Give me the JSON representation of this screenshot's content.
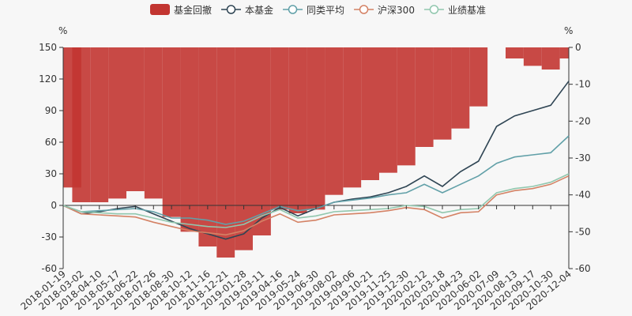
{
  "chart_data": {
    "type": "line",
    "unit_left": "%",
    "unit_right": "%",
    "left_axis": {
      "min": -60,
      "max": 150,
      "ticks": [
        150,
        120,
        90,
        60,
        30,
        0,
        -30,
        -60
      ]
    },
    "right_axis": {
      "min": -60,
      "max": 0,
      "ticks": [
        0,
        -10,
        -20,
        -30,
        -40,
        -50,
        -60
      ]
    },
    "x_labels": [
      "2018-01-19",
      "2018-03-02",
      "2018-04-10",
      "2018-05-17",
      "2018-06-22",
      "2018-07-26",
      "2018-08-30",
      "2018-10-12",
      "2018-11-16",
      "2018-12-21",
      "2019-01-28",
      "2019-03-11",
      "2019-04-16",
      "2019-05-24",
      "2019-06-30",
      "2019-08-02",
      "2019-09-06",
      "2019-10-21",
      "2019-11-25",
      "2019-12-30",
      "2020-02-12",
      "2020-03-18",
      "2020-04-23",
      "2020-06-02",
      "2020-07-09",
      "2020-08-13",
      "2020-09-17",
      "2020-10-30",
      "2020-12-04"
    ],
    "legend": [
      {
        "name": "基金回撤",
        "color": "#c23531",
        "kind": "bar"
      },
      {
        "name": "本基金",
        "color": "#2f4554",
        "kind": "line"
      },
      {
        "name": "同类平均",
        "color": "#61a0a8",
        "kind": "line"
      },
      {
        "name": "沪深300",
        "color": "#d48265",
        "kind": "line"
      },
      {
        "name": "业绩基准",
        "color": "#91c7ae",
        "kind": "line"
      }
    ],
    "drawdown_series": {
      "name": "基金回撤",
      "x": [
        "2018-01-19",
        "2018-03-02",
        "2018-04-10",
        "2018-05-17",
        "2018-06-22",
        "2018-07-26",
        "2018-08-30",
        "2018-10-12",
        "2018-11-16",
        "2018-12-21",
        "2019-01-28",
        "2019-03-11",
        "2019-04-16",
        "2019-05-24",
        "2019-06-30",
        "2019-08-02",
        "2019-09-06",
        "2019-10-21",
        "2019-11-25",
        "2019-12-30",
        "2020-02-12",
        "2020-03-18",
        "2020-04-23",
        "2020-06-02",
        "2020-07-09",
        "2020-08-13",
        "2020-09-17",
        "2020-10-30",
        "2020-12-04"
      ],
      "values": [
        -38,
        -42,
        -42,
        -41,
        -39,
        -41,
        -46,
        -50,
        -54,
        -57,
        -55,
        -51,
        -44,
        -45,
        -44,
        -40,
        -38,
        -36,
        -34,
        -32,
        -27,
        -25,
        -22,
        -16,
        0,
        -3,
        -5,
        -6,
        -3
      ]
    },
    "series": [
      {
        "name": "本基金",
        "values": [
          0,
          -8,
          -6,
          -3,
          -1,
          -8,
          -15,
          -22,
          -27,
          -32,
          -27,
          -12,
          -2,
          -10,
          -3,
          3,
          6,
          8,
          12,
          18,
          28,
          18,
          32,
          42,
          75,
          85,
          90,
          95,
          118
        ]
      },
      {
        "name": "同类平均",
        "values": [
          0,
          -6,
          -5,
          -4,
          -3,
          -6,
          -12,
          -12,
          -14,
          -18,
          -15,
          -8,
          -1,
          -5,
          -3,
          3,
          5,
          7,
          10,
          12,
          20,
          12,
          20,
          28,
          40,
          46,
          48,
          50,
          66
        ]
      },
      {
        "name": "沪深300",
        "values": [
          0,
          -8,
          -9,
          -10,
          -11,
          -16,
          -20,
          -24,
          -26,
          -28,
          -24,
          -15,
          -8,
          -16,
          -14,
          -9,
          -8,
          -7,
          -5,
          -2,
          -4,
          -12,
          -7,
          -6,
          10,
          14,
          16,
          20,
          28
        ]
      },
      {
        "name": "业绩基准",
        "values": [
          0,
          -6,
          -7,
          -8,
          -8,
          -12,
          -16,
          -18,
          -20,
          -21,
          -18,
          -10,
          -4,
          -12,
          -10,
          -6,
          -5,
          -4,
          -3,
          0,
          -1,
          -7,
          -4,
          -3,
          12,
          16,
          18,
          22,
          30
        ]
      }
    ]
  }
}
